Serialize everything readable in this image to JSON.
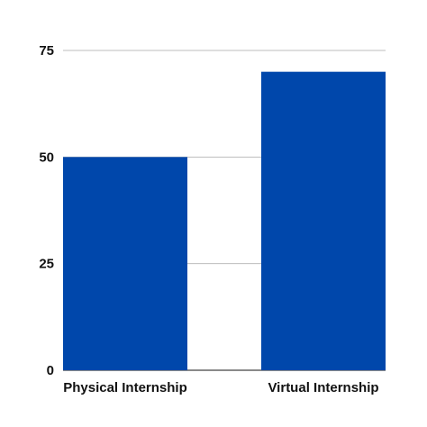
{
  "chart_data": {
    "type": "bar",
    "title": "",
    "xlabel": "",
    "ylabel": "",
    "categories": [
      "Physical Internship",
      "Virtual Internship"
    ],
    "values": [
      50,
      70
    ],
    "ylim": [
      0,
      75
    ],
    "yticks": [
      "0",
      "25",
      "50",
      "75"
    ],
    "ytick_values": [
      0,
      25,
      50,
      75
    ],
    "grid": true,
    "legend": "none",
    "bar_color": "#0047ab",
    "grid_color": "#bdbdbd"
  }
}
